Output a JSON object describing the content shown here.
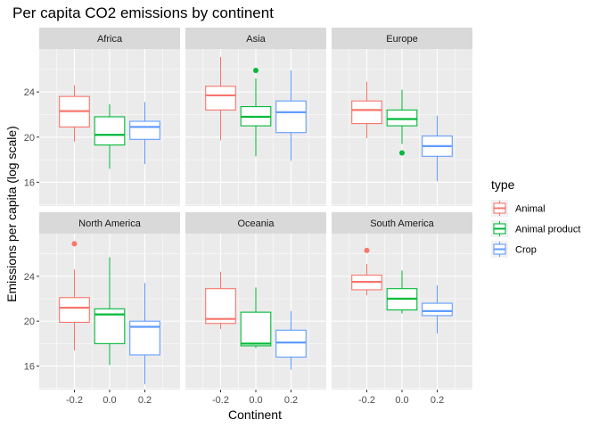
{
  "chart_data": {
    "type": "boxplot",
    "title": "Per capita CO2 emissions by continent",
    "xlabel": "Continent",
    "ylabel": "Emissions per capita (log scale)",
    "x_ticks": [
      -0.2,
      0.0,
      0.2
    ],
    "x_tick_labels": [
      "-0.2",
      "0.0",
      "0.2"
    ],
    "xlim": [
      -0.4,
      0.4
    ],
    "y_ticks": [
      16,
      20,
      24
    ],
    "y_tick_labels": [
      "16",
      "20",
      "24"
    ],
    "ylim": [
      13.9,
      27.8
    ],
    "grid": true,
    "legend": {
      "title": "type",
      "position": "right",
      "entries": [
        {
          "name": "Animal",
          "color": "#F8766D"
        },
        {
          "name": "Animal product",
          "color": "#00BA38"
        },
        {
          "name": "Crop",
          "color": "#619CFF"
        }
      ]
    },
    "panels": [
      {
        "name": "Africa",
        "boxes": [
          {
            "type": "Animal",
            "x": -0.2,
            "lower": 19.6,
            "q1": 20.9,
            "median": 22.3,
            "q3": 23.6,
            "upper": 24.6,
            "outliers": []
          },
          {
            "type": "Animal product",
            "x": 0.0,
            "lower": 17.2,
            "q1": 19.3,
            "median": 20.2,
            "q3": 21.8,
            "upper": 22.9,
            "outliers": []
          },
          {
            "type": "Crop",
            "x": 0.2,
            "lower": 17.6,
            "q1": 19.8,
            "median": 20.9,
            "q3": 21.4,
            "upper": 23.1,
            "outliers": []
          }
        ]
      },
      {
        "name": "Asia",
        "boxes": [
          {
            "type": "Animal",
            "x": -0.2,
            "lower": 19.7,
            "q1": 22.4,
            "median": 23.7,
            "q3": 24.5,
            "upper": 27.1,
            "outliers": []
          },
          {
            "type": "Animal product",
            "x": 0.0,
            "lower": 18.3,
            "q1": 21.0,
            "median": 21.8,
            "q3": 22.7,
            "upper": 25.2,
            "outliers": [
              25.9
            ]
          },
          {
            "type": "Crop",
            "x": 0.2,
            "lower": 17.9,
            "q1": 20.4,
            "median": 22.2,
            "q3": 23.2,
            "upper": 25.9,
            "outliers": []
          }
        ]
      },
      {
        "name": "Europe",
        "boxes": [
          {
            "type": "Animal",
            "x": -0.2,
            "lower": 19.9,
            "q1": 21.2,
            "median": 22.4,
            "q3": 23.2,
            "upper": 24.9,
            "outliers": []
          },
          {
            "type": "Animal product",
            "x": 0.0,
            "lower": 19.4,
            "q1": 21.0,
            "median": 21.6,
            "q3": 22.4,
            "upper": 24.2,
            "outliers": [
              18.6
            ]
          },
          {
            "type": "Crop",
            "x": 0.2,
            "lower": 16.1,
            "q1": 18.3,
            "median": 19.2,
            "q3": 20.1,
            "upper": 21.9,
            "outliers": []
          }
        ]
      },
      {
        "name": "North America",
        "boxes": [
          {
            "type": "Animal",
            "x": -0.2,
            "lower": 17.4,
            "q1": 19.9,
            "median": 21.2,
            "q3": 22.1,
            "upper": 24.6,
            "outliers": [
              26.9
            ]
          },
          {
            "type": "Animal product",
            "x": 0.0,
            "lower": 16.1,
            "q1": 18.0,
            "median": 20.6,
            "q3": 21.1,
            "upper": 25.7,
            "outliers": []
          },
          {
            "type": "Crop",
            "x": 0.2,
            "lower": 14.4,
            "q1": 17.0,
            "median": 19.5,
            "q3": 20.0,
            "upper": 23.4,
            "outliers": []
          }
        ]
      },
      {
        "name": "Oceania",
        "boxes": [
          {
            "type": "Animal",
            "x": -0.2,
            "lower": 19.3,
            "q1": 19.8,
            "median": 20.2,
            "q3": 22.9,
            "upper": 24.4,
            "outliers": []
          },
          {
            "type": "Animal product",
            "x": 0.0,
            "lower": 17.6,
            "q1": 17.8,
            "median": 18.0,
            "q3": 20.8,
            "upper": 23.0,
            "outliers": []
          },
          {
            "type": "Crop",
            "x": 0.2,
            "lower": 15.7,
            "q1": 16.8,
            "median": 18.1,
            "q3": 19.2,
            "upper": 20.9,
            "outliers": []
          }
        ]
      },
      {
        "name": "South America",
        "boxes": [
          {
            "type": "Animal",
            "x": -0.2,
            "lower": 22.3,
            "q1": 22.8,
            "median": 23.5,
            "q3": 24.1,
            "upper": 25.1,
            "outliers": [
              26.3
            ]
          },
          {
            "type": "Animal product",
            "x": 0.0,
            "lower": 20.7,
            "q1": 21.0,
            "median": 22.0,
            "q3": 22.9,
            "upper": 24.5,
            "outliers": []
          },
          {
            "type": "Crop",
            "x": 0.2,
            "lower": 18.9,
            "q1": 20.5,
            "median": 20.9,
            "q3": 21.6,
            "upper": 23.2,
            "outliers": []
          }
        ]
      }
    ]
  }
}
